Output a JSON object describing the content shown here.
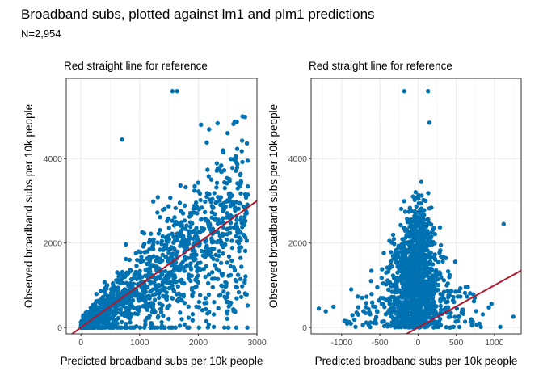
{
  "title": "Broadband subs, plotted against lm1 and plm1 predictions",
  "subtitle": "N=2,954",
  "chart_data": [
    {
      "type": "scatter",
      "title": "Red straight line for reference",
      "xlabel": "Predicted broadband subs per 10k people",
      "ylabel": "Observed broadband subs per 10k people",
      "xlim": [
        -250,
        3000
      ],
      "ylim": [
        -150,
        5900
      ],
      "xticks": [
        0,
        1000,
        2000,
        3000
      ],
      "yticks": [
        0,
        2000,
        4000
      ],
      "grid": true,
      "point_color": "#0072B2",
      "reference_line": {
        "slope": 1,
        "intercept": 0,
        "color": "#B2182B"
      },
      "n_points": 2954,
      "highlighted_points": [
        {
          "x": 1560,
          "y": 5600
        },
        {
          "x": 1640,
          "y": 5600
        },
        {
          "x": 700,
          "y": 4450
        },
        {
          "x": 2600,
          "y": 4820
        }
      ]
    },
    {
      "type": "scatter",
      "title": "Red straight line for reference",
      "xlabel": "Predicted broadband subs per 10k people",
      "ylabel": "Observed broadband subs per 10k people",
      "xlim": [
        -1400,
        1350
      ],
      "ylim": [
        -150,
        5900
      ],
      "xticks": [
        -1000,
        -500,
        0,
        500,
        1000
      ],
      "yticks": [
        0,
        2000,
        4000
      ],
      "grid": true,
      "point_color": "#0072B2",
      "reference_line": {
        "slope": 1,
        "intercept": 0,
        "color": "#B2182B"
      },
      "n_points": 2954,
      "highlighted_points": [
        {
          "x": -180,
          "y": 5600
        },
        {
          "x": 130,
          "y": 5600
        },
        {
          "x": 150,
          "y": 4850
        },
        {
          "x": 1120,
          "y": 2450
        }
      ]
    }
  ]
}
